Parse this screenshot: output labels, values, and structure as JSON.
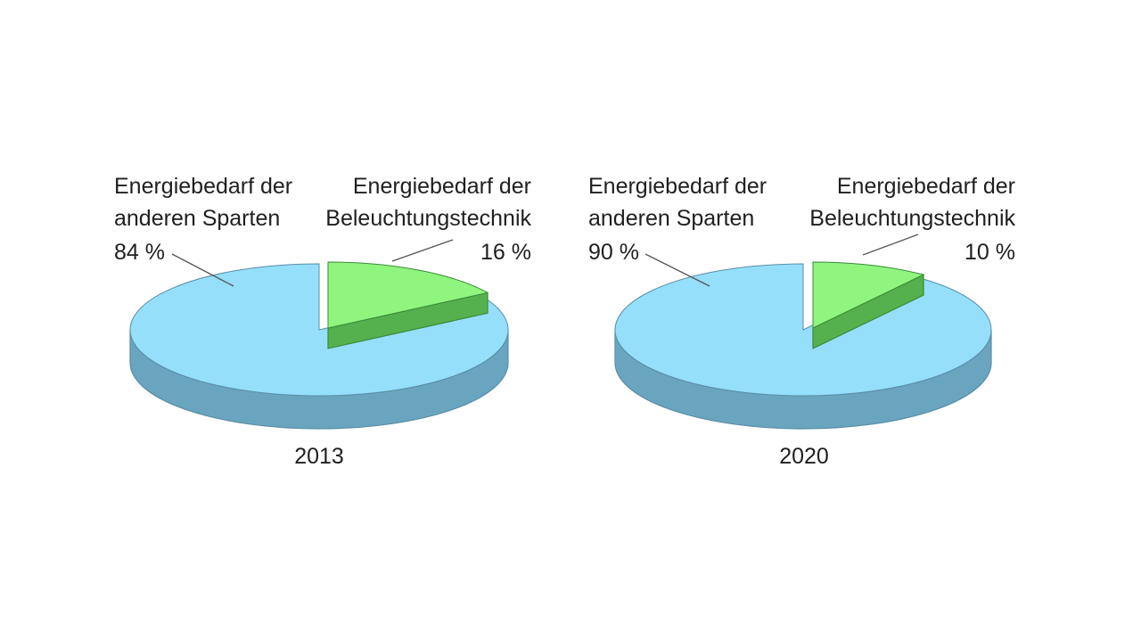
{
  "colors": {
    "main_top": "#95dffb",
    "main_side": "#6aa5bf",
    "main_edge": "#5a8ea6",
    "slice_top": "#8ff57f",
    "slice_side": "#55b14d",
    "slice_edge": "#3c8a38",
    "leader": "#555555"
  },
  "chart_data": [
    {
      "type": "pie",
      "style": "3d-exploded",
      "year": "2013",
      "slices": [
        {
          "label_lines": [
            "Energiebedarf der",
            "anderen Sparten",
            "84 %"
          ],
          "value": 84,
          "exploded": false
        },
        {
          "label_lines": [
            "Energiebedarf der",
            "Beleuchtungstechnik",
            "16 %"
          ],
          "value": 16,
          "exploded": true
        }
      ]
    },
    {
      "type": "pie",
      "style": "3d-exploded",
      "year": "2020",
      "slices": [
        {
          "label_lines": [
            "Energiebedarf der",
            "anderen Sparten",
            "90 %"
          ],
          "value": 90,
          "exploded": false
        },
        {
          "label_lines": [
            "Energiebedarf der",
            "Beleuchtungstechnik",
            "10 %"
          ],
          "value": 10,
          "exploded": true
        }
      ]
    }
  ]
}
